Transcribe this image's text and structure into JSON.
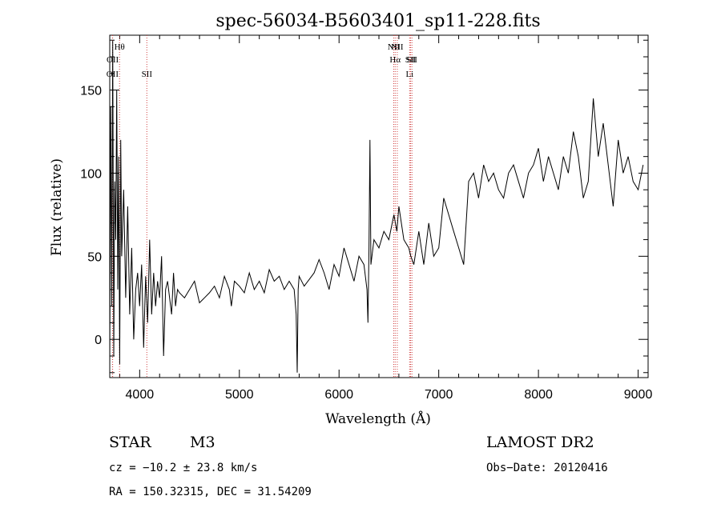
{
  "chart_data": {
    "type": "line",
    "title": "spec-56034-B5603401_sp11-228.fits",
    "xlabel": "Wavelength (Å)",
    "ylabel": "Flux (relative)",
    "xlim": [
      3700,
      9100
    ],
    "ylim": [
      -23,
      183
    ],
    "x_ticks": [
      4000,
      5000,
      6000,
      7000,
      8000,
      9000
    ],
    "y_ticks": [
      0,
      50,
      100,
      150
    ],
    "grid": false,
    "series": [
      {
        "x": [
          3700,
          3710,
          3720,
          3730,
          3740,
          3750,
          3760,
          3770,
          3780,
          3790,
          3800,
          3810,
          3820,
          3840,
          3860,
          3880,
          3900,
          3920,
          3940,
          3960,
          3980,
          4000,
          4020,
          4040,
          4060,
          4080,
          4100,
          4120,
          4140,
          4160,
          4180,
          4200,
          4220,
          4240,
          4260,
          4280,
          4300,
          4320,
          4340,
          4360,
          4380,
          4400,
          4450,
          4500,
          4550,
          4600,
          4650,
          4700,
          4750,
          4800,
          4850,
          4900,
          4920,
          4950,
          5000,
          5050,
          5100,
          5150,
          5200,
          5250,
          5300,
          5350,
          5400,
          5450,
          5500,
          5550,
          5570,
          5580,
          5590,
          5600,
          5650,
          5700,
          5750,
          5800,
          5850,
          5900,
          5950,
          6000,
          6050,
          6100,
          6150,
          6200,
          6250,
          6280,
          6290,
          6300,
          6310,
          6320,
          6350,
          6400,
          6450,
          6500,
          6550,
          6580,
          6600,
          6650,
          6700,
          6720,
          6750,
          6800,
          6850,
          6900,
          6950,
          7000,
          7050,
          7100,
          7150,
          7200,
          7250,
          7300,
          7350,
          7400,
          7450,
          7500,
          7550,
          7600,
          7650,
          7700,
          7750,
          7800,
          7850,
          7900,
          7950,
          8000,
          8050,
          8100,
          8150,
          8200,
          8250,
          8300,
          8350,
          8400,
          8450,
          8500,
          8550,
          8600,
          8650,
          8700,
          8750,
          8800,
          8850,
          8900,
          8950,
          9000,
          9050
        ],
        "y": [
          -15,
          140,
          20,
          180,
          -10,
          95,
          60,
          150,
          30,
          110,
          -15,
          120,
          50,
          90,
          25,
          80,
          15,
          55,
          0,
          30,
          40,
          20,
          45,
          -5,
          38,
          10,
          60,
          15,
          40,
          20,
          35,
          25,
          50,
          -10,
          30,
          35,
          25,
          15,
          40,
          20,
          30,
          28,
          25,
          30,
          35,
          22,
          25,
          28,
          32,
          25,
          38,
          30,
          20,
          35,
          32,
          28,
          40,
          30,
          35,
          28,
          42,
          35,
          38,
          30,
          35,
          30,
          15,
          -20,
          30,
          38,
          32,
          36,
          40,
          48,
          40,
          30,
          45,
          38,
          55,
          45,
          35,
          50,
          45,
          30,
          10,
          55,
          120,
          45,
          60,
          55,
          65,
          60,
          75,
          65,
          80,
          60,
          55,
          50,
          45,
          65,
          45,
          70,
          50,
          55,
          85,
          75,
          65,
          55,
          45,
          95,
          100,
          85,
          105,
          95,
          100,
          90,
          85,
          100,
          105,
          95,
          85,
          100,
          105,
          115,
          95,
          110,
          100,
          90,
          110,
          100,
          125,
          110,
          85,
          95,
          145,
          110,
          130,
          105,
          80,
          120,
          100,
          110,
          95,
          90,
          105
        ]
      }
    ],
    "line_markers": [
      {
        "label": "OII",
        "x": 3727,
        "row": 2
      },
      {
        "label": "OII",
        "x": 3729,
        "row": 1
      },
      {
        "label": "Hθ",
        "x": 3798,
        "row": 0
      },
      {
        "label": "SII",
        "x": 4072,
        "row": 2
      },
      {
        "label": "NII",
        "x": 6548,
        "row": 0
      },
      {
        "label": "NII",
        "x": 6584,
        "row": 0
      },
      {
        "label": "Hα",
        "x": 6563,
        "row": 1
      },
      {
        "label": "SII",
        "x": 6717,
        "row": 1
      },
      {
        "label": "SII",
        "x": 6731,
        "row": 1
      },
      {
        "label": "Li",
        "x": 6708,
        "row": 2
      }
    ]
  },
  "info": {
    "object_class": "STAR",
    "subclass": "M3",
    "release": "LAMOST DR2",
    "cz": "cz = −10.2 ± 23.8 km/s",
    "obs_date": "Obs−Date: 20120416",
    "radec": "RA = 150.32315, DEC =  31.54209"
  }
}
